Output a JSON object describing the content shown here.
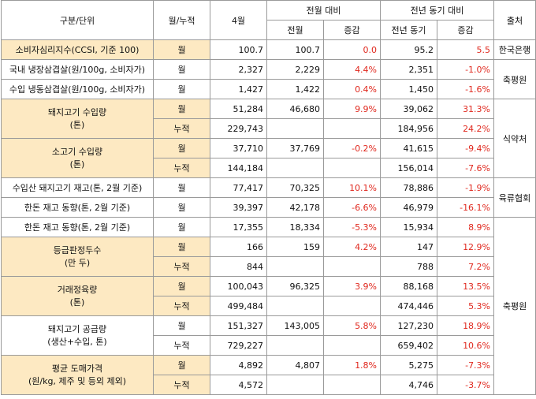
{
  "headers": {
    "category": "구분/단위",
    "unit": "월/누적",
    "month": "4월",
    "mom_group": "전월 대비",
    "mom_prev": "전월",
    "mom_change": "증감",
    "yoy_group": "전년 동기 대비",
    "yoy_prev": "전년 동기",
    "yoy_change": "증감",
    "source": "출처"
  },
  "rows": [
    {
      "cat": "소비자심리지수(CCSI, 기준 100)",
      "unit": "월",
      "month": "100.7",
      "mom_prev": "100.7",
      "mom_change": "0.0",
      "yoy_prev": "95.2",
      "yoy_change": "5.5"
    },
    {
      "cat": "국내 냉장삼겹살(원/100g, 소비자가)",
      "unit": "월",
      "month": "2,327",
      "mom_prev": "2,229",
      "mom_change": "4.4%",
      "yoy_prev": "2,351",
      "yoy_change": "-1.0%"
    },
    {
      "cat": "수입 냉동삼겹살(원/100g, 소비자가)",
      "unit": "월",
      "month": "1,427",
      "mom_prev": "1,422",
      "mom_change": "0.4%",
      "yoy_prev": "1,450",
      "yoy_change": "-1.6%"
    },
    {
      "cat": "돼지고기 수입량\n(톤)",
      "unit": "월",
      "month": "51,284",
      "mom_prev": "46,680",
      "mom_change": "9.9%",
      "yoy_prev": "39,062",
      "yoy_change": "31.3%"
    },
    {
      "unit": "누적",
      "month": "229,743",
      "mom_prev": "",
      "mom_change": "",
      "yoy_prev": "184,956",
      "yoy_change": "24.2%"
    },
    {
      "cat": "소고기 수입량\n(톤)",
      "unit": "월",
      "month": "37,710",
      "mom_prev": "37,769",
      "mom_change": "-0.2%",
      "yoy_prev": "41,615",
      "yoy_change": "-9.4%"
    },
    {
      "unit": "누적",
      "month": "144,184",
      "mom_prev": "",
      "mom_change": "",
      "yoy_prev": "156,014",
      "yoy_change": "-7.6%"
    },
    {
      "cat": "수입산 돼지고기 재고(톤, 2월 기준)",
      "unit": "월",
      "month": "77,417",
      "mom_prev": "70,325",
      "mom_change": "10.1%",
      "yoy_prev": "78,886",
      "yoy_change": "-1.9%"
    },
    {
      "cat": "한돈 재고 동향(톤, 2월 기준)",
      "unit": "월",
      "month": "39,397",
      "mom_prev": "42,178",
      "mom_change": "-6.6%",
      "yoy_prev": "46,979",
      "yoy_change": "-16.1%"
    },
    {
      "cat": "한돈 재고 동향(톤, 2월 기준)",
      "unit": "월",
      "month": "17,355",
      "mom_prev": "18,334",
      "mom_change": "-5.3%",
      "yoy_prev": "15,934",
      "yoy_change": "8.9%"
    },
    {
      "cat": "등급판정두수\n(만 두)",
      "unit": "월",
      "month": "166",
      "mom_prev": "159",
      "mom_change": "4.2%",
      "yoy_prev": "147",
      "yoy_change": "12.9%"
    },
    {
      "unit": "누적",
      "month": "844",
      "mom_prev": "",
      "mom_change": "",
      "yoy_prev": "788",
      "yoy_change": "7.2%"
    },
    {
      "cat": "거래정육량\n(톤)",
      "unit": "월",
      "month": "100,043",
      "mom_prev": "96,325",
      "mom_change": "3.9%",
      "yoy_prev": "88,168",
      "yoy_change": "13.5%"
    },
    {
      "unit": "누적",
      "month": "499,484",
      "mom_prev": "",
      "mom_change": "",
      "yoy_prev": "474,446",
      "yoy_change": "5.3%"
    },
    {
      "cat": "돼지고기 공급량\n(생산+수입, 톤)",
      "unit": "월",
      "month": "151,327",
      "mom_prev": "143,005",
      "mom_change": "5.8%",
      "yoy_prev": "127,230",
      "yoy_change": "18.9%"
    },
    {
      "unit": "누적",
      "month": "729,227",
      "mom_prev": "",
      "mom_change": "",
      "yoy_prev": "659,402",
      "yoy_change": "10.6%"
    },
    {
      "cat": "평균 도매가격\n(원/kg, 제주 및 등외 제외)",
      "unit": "월",
      "month": "4,892",
      "mom_prev": "4,807",
      "mom_change": "1.8%",
      "yoy_prev": "5,275",
      "yoy_change": "-7.3%"
    },
    {
      "unit": "누적",
      "month": "4,572",
      "mom_prev": "",
      "mom_change": "",
      "yoy_prev": "4,746",
      "yoy_change": "-3.7%"
    }
  ],
  "sources": {
    "s0": "한국은행",
    "s1": "축평원",
    "s2": "식약처",
    "s3": "육류협회",
    "s4": "축평원"
  },
  "colors": {
    "highlight": "#fde9c2",
    "negative": "#e0281e"
  }
}
